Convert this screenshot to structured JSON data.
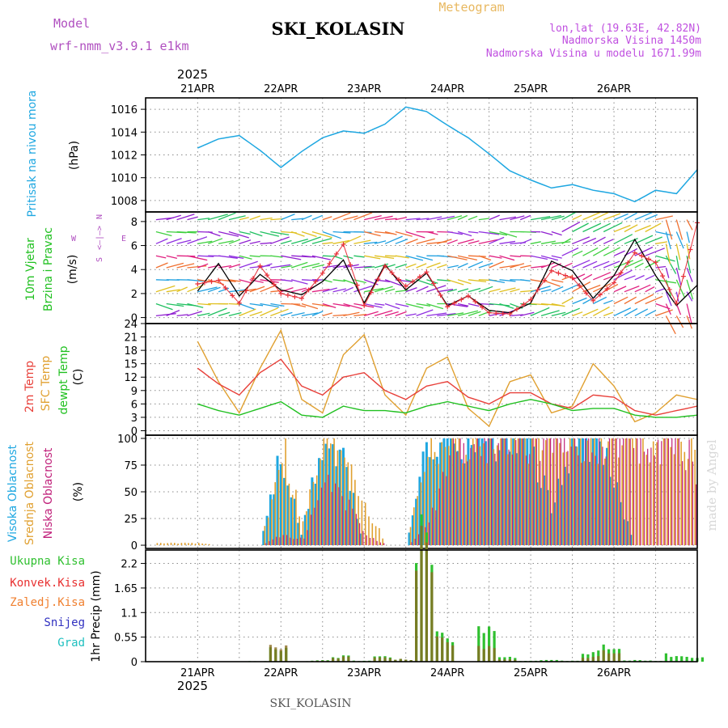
{
  "header": {
    "model_label": "Model",
    "model_name": "wrf-nmm_v3.9.1 e1km",
    "station": "SKI_KOLASIN",
    "product": "Meteogram",
    "coords": "lon,lat (19.63E, 42.82N)",
    "elevation": "Nadmorska Visina 1450m",
    "model_elevation": "Nadmorska Visina u modelu 1671.99m",
    "footer_station": "SKI_KOLASIN",
    "watermark": "made by Angel"
  },
  "colors": {
    "pressure": "#1ea7e1",
    "wind_speed": "#000000",
    "wind_gust": "#e8303a",
    "temp2m": "#e8403a",
    "sfc_temp": "#e0a030",
    "dewpoint": "#20c020",
    "high_cloud": "#1ea7e1",
    "mid_cloud": "#e0a030",
    "low_cloud": "#c0207a",
    "total_precip": "#30c030",
    "conv_precip": "#e83030",
    "freezing_precip": "#f08030",
    "snow": "#3030c0",
    "hail": "#20c0c0",
    "model_label": "#b050c0",
    "info_text": "#c050e0",
    "meteogram_title": "#e8b860"
  },
  "chart_data": [
    {
      "type": "line",
      "panel": "pressure",
      "ylabel_lines": [
        "Pritisak na nivou mora",
        "(hPa)"
      ],
      "ylim": [
        1007,
        1017
      ],
      "yticks": [
        "1008",
        "1010",
        "1012",
        "1014",
        "1016"
      ],
      "xlabels_top": [
        "21APR",
        "22APR",
        "23APR",
        "24APR",
        "25APR",
        "26APR"
      ],
      "year_label": "2025",
      "x_hours": [
        0,
        6,
        12,
        18,
        24,
        30,
        36,
        42,
        48,
        54,
        60,
        66,
        72,
        78,
        84,
        90,
        96,
        102,
        108,
        114,
        120,
        126,
        132,
        138,
        144
      ],
      "series": [
        {
          "values": [
            1012.6,
            1013.4,
            1013.7,
            1012.4,
            1010.9,
            1012.3,
            1013.5,
            1014.1,
            1013.9,
            1014.7,
            1016.2,
            1015.8,
            1014.6,
            1013.5,
            1012.1,
            1010.6,
            1009.8,
            1009.1,
            1009.4,
            1008.9,
            1008.6,
            1007.9,
            1008.9,
            1008.6,
            1010.7
          ]
        }
      ]
    },
    {
      "type": "line",
      "panel": "wind",
      "ylabel_lines": [
        "10m Vjetar",
        "Brzina i Pravac",
        "(m/s)"
      ],
      "compass": [
        "N",
        "S",
        "W",
        "E"
      ],
      "ylim": [
        -0.5,
        8.8
      ],
      "yticks": [
        "0",
        "2",
        "4",
        "6",
        "8"
      ],
      "x_hours": [
        0,
        6,
        12,
        18,
        24,
        30,
        36,
        42,
        48,
        54,
        60,
        66,
        72,
        78,
        84,
        90,
        96,
        102,
        108,
        114,
        120,
        126,
        132,
        138,
        144
      ],
      "series": [
        {
          "name": "wind speed",
          "values": [
            2.2,
            4.5,
            1.8,
            3.6,
            2.3,
            1.9,
            3.0,
            4.8,
            1.2,
            4.4,
            2.3,
            3.7,
            1.0,
            1.8,
            0.6,
            0.4,
            1.2,
            4.7,
            3.9,
            1.6,
            3.5,
            6.5,
            3.5,
            1.0,
            2.7
          ]
        },
        {
          "name": "gust",
          "values": [
            2.8,
            3.1,
            1.2,
            4.3,
            2.0,
            1.6,
            3.7,
            6.1,
            1.0,
            4.3,
            2.6,
            3.8,
            0.9,
            1.8,
            0.4,
            0.3,
            1.5,
            3.9,
            3.3,
            1.4,
            2.9,
            5.4,
            4.6,
            1.2,
            7.9
          ]
        }
      ]
    },
    {
      "type": "line",
      "panel": "temperature",
      "ylabel_lines": [
        "2m Temp",
        "SFC Temp",
        "dewpt Temp",
        "(C)"
      ],
      "ylim": [
        -1,
        24
      ],
      "yticks": [
        "0",
        "3",
        "6",
        "9",
        "12",
        "15",
        "18",
        "21",
        "24"
      ],
      "x_hours": [
        0,
        6,
        12,
        18,
        24,
        30,
        36,
        42,
        48,
        54,
        60,
        66,
        72,
        78,
        84,
        90,
        96,
        102,
        108,
        114,
        120,
        126,
        132,
        138,
        144
      ],
      "series": [
        {
          "name": "2m Temp",
          "values": [
            14.0,
            10.5,
            8.0,
            13.0,
            16.0,
            10.0,
            8.0,
            12.0,
            13.0,
            9.0,
            7.0,
            10.0,
            11.0,
            7.5,
            6.0,
            8.5,
            8.5,
            6.0,
            5.0,
            8.0,
            7.5,
            4.5,
            3.5,
            4.5,
            5.5
          ]
        },
        {
          "name": "SFC Temp",
          "values": [
            20.0,
            11.0,
            4.0,
            14.0,
            22.5,
            7.0,
            4.0,
            17.0,
            21.5,
            8.0,
            3.5,
            14.0,
            16.5,
            5.0,
            1.0,
            11.0,
            12.5,
            4.0,
            5.5,
            15.0,
            10.0,
            2.0,
            4.0,
            8.0,
            7.0
          ]
        },
        {
          "name": "dewpt Temp",
          "values": [
            6.0,
            4.5,
            3.5,
            5.0,
            6.5,
            3.5,
            3.0,
            5.5,
            4.5,
            4.5,
            4.0,
            5.5,
            6.5,
            5.5,
            4.5,
            6.0,
            7.0,
            6.0,
            4.5,
            5.0,
            5.0,
            3.5,
            3.0,
            3.0,
            3.5
          ]
        }
      ]
    },
    {
      "type": "bar",
      "panel": "clouds",
      "ylabel_lines": [
        "Visoka Oblacnost",
        "Srednja Oblacnost",
        "Niska Oblacnost",
        "(%)"
      ],
      "ylim": [
        -3,
        103
      ],
      "yticks": [
        "0",
        "25",
        "50",
        "75",
        "100"
      ],
      "x_hours": [
        0,
        6,
        12,
        18,
        24,
        30,
        36,
        42,
        48,
        54,
        60,
        66,
        72,
        78,
        84,
        90,
        96,
        102,
        108,
        114,
        120,
        126,
        132,
        138,
        144
      ],
      "series": [
        {
          "name": "Visoka Oblacnost",
          "values": [
            0,
            0,
            0,
            0,
            85,
            10,
            95,
            80,
            0,
            0,
            0,
            90,
            100,
            100,
            100,
            100,
            100,
            30,
            100,
            100,
            60,
            0,
            0,
            0,
            0
          ]
        },
        {
          "name": "Srednja Oblacnost",
          "values": [
            2,
            0,
            0,
            0,
            100,
            20,
            100,
            100,
            40,
            0,
            0,
            100,
            100,
            100,
            100,
            100,
            100,
            100,
            100,
            100,
            100,
            100,
            100,
            100,
            100
          ]
        },
        {
          "name": "Niska Oblacnost",
          "values": [
            0,
            0,
            0,
            0,
            10,
            5,
            60,
            40,
            10,
            0,
            0,
            20,
            90,
            100,
            100,
            100,
            100,
            100,
            100,
            100,
            100,
            100,
            100,
            100,
            60
          ]
        }
      ]
    },
    {
      "type": "bar",
      "panel": "precipitation",
      "ylabel_lines": [
        "1hr Precip (mm)"
      ],
      "legend": [
        "Ukupna Kisa",
        "Konvek.Kisa",
        "Zaledj.Kisa",
        "Snijeg",
        "Grad"
      ],
      "ylim": [
        0,
        2.5
      ],
      "yticks": [
        "0",
        "0.55",
        "1.1",
        "1.65",
        "2.2"
      ],
      "xlabels_bottom": [
        "21APR",
        "22APR",
        "23APR",
        "24APR",
        "25APR",
        "26APR"
      ],
      "year_label": "2025",
      "x_hours": [
        0,
        6,
        12,
        18,
        24,
        30,
        36,
        42,
        48,
        54,
        60,
        66,
        72,
        78,
        84,
        90,
        96,
        102,
        108,
        114,
        120,
        126,
        132,
        138,
        144
      ],
      "series": [
        {
          "name": "Ukupna Kisa",
          "values": [
            0,
            0,
            0,
            0.01,
            0.3,
            0.01,
            0.03,
            0.12,
            0.02,
            0.1,
            0.05,
            2.6,
            0.6,
            0,
            0.9,
            0.1,
            0.02,
            0.03,
            0.02,
            0.2,
            0.3,
            0.03,
            0.02,
            0.15,
            0.1
          ]
        },
        {
          "name": "Konvek.Kisa",
          "values": [
            0,
            0,
            0,
            0,
            0.35,
            0,
            0.02,
            0.1,
            0.01,
            0.08,
            0.05,
            2.4,
            0.5,
            0,
            0.4,
            0.05,
            0,
            0,
            0.01,
            0.1,
            0.2,
            0,
            0,
            0,
            0
          ]
        }
      ]
    }
  ]
}
